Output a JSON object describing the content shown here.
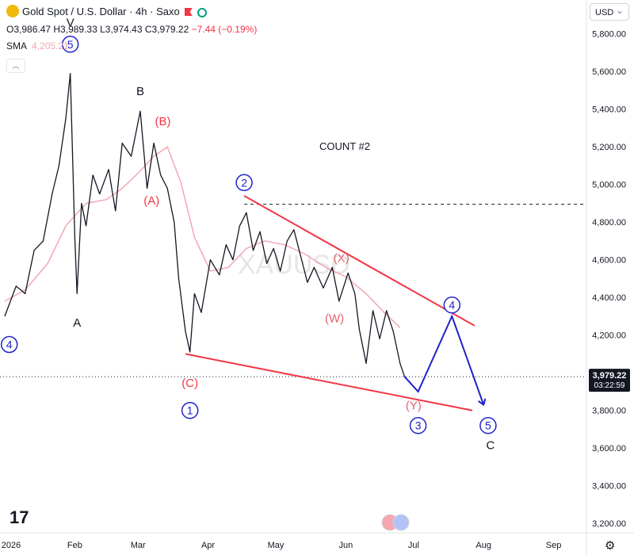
{
  "header": {
    "title": "Gold Spot / U.S. Dollar · 4h · Saxo",
    "open": "O3,986.47",
    "high": "H3,989.33",
    "low": "L3,974.43",
    "close": "C3,979.22",
    "change": "−7.44 (−0.19%)",
    "sma_label": "SMA",
    "sma_value": "4,205.21",
    "currency": "USD"
  },
  "price_box": {
    "price": "3,979.22",
    "countdown": "03:22:59"
  },
  "watermark": "XAUUSD",
  "count_label": "COUNT #2",
  "branding": "17",
  "colors": {
    "wave_blue": "#1e22c8",
    "line_red": "#f23645",
    "wave_red": "#e8606f",
    "price_black": "#131722",
    "sma_pink": "#f4a7b3"
  },
  "chart_data": {
    "type": "line",
    "interval": "4h",
    "y_axis": {
      "range": [
        3150,
        5980
      ],
      "ticks": [
        3200,
        3400,
        3600,
        3800,
        4000,
        4200,
        4400,
        4600,
        4800,
        5000,
        5200,
        5400,
        5600,
        5800
      ],
      "tick_labels": [
        "3,200.00",
        "3,400.00",
        "3,600.00",
        "3,800.00",
        "4,000.00",
        "4,200.00",
        "4,400.00",
        "4,600.00",
        "4,800.00",
        "5,000.00",
        "5,200.00",
        "5,400.00",
        "5,600.00",
        "5,800.00"
      ]
    },
    "x_axis": {
      "range": [
        "2026-01-01",
        "2026-09-28"
      ],
      "ticks": [
        "2026-01-01",
        "2026-02-01",
        "2026-03-01",
        "2026-04-01",
        "2026-05-01",
        "2026-06-01",
        "2026-07-01",
        "2026-08-01",
        "2026-09-01"
      ],
      "tick_labels": [
        "2026",
        "Feb",
        "Mar",
        "Apr",
        "May",
        "Jun",
        "Jul",
        "Aug",
        "Sep"
      ]
    },
    "price_series": [
      [
        "2026-01-01",
        4300
      ],
      [
        "2026-01-06",
        4460
      ],
      [
        "2026-01-10",
        4420
      ],
      [
        "2026-01-14",
        4650
      ],
      [
        "2026-01-18",
        4700
      ],
      [
        "2026-01-22",
        4950
      ],
      [
        "2026-01-25",
        5100
      ],
      [
        "2026-01-28",
        5350
      ],
      [
        "2026-01-30",
        5590
      ],
      [
        "2026-02-01",
        4720
      ],
      [
        "2026-02-02",
        4420
      ],
      [
        "2026-02-04",
        4900
      ],
      [
        "2026-02-06",
        4780
      ],
      [
        "2026-02-09",
        5050
      ],
      [
        "2026-02-12",
        4950
      ],
      [
        "2026-02-16",
        5080
      ],
      [
        "2026-02-19",
        4860
      ],
      [
        "2026-02-22",
        5220
      ],
      [
        "2026-02-26",
        5150
      ],
      [
        "2026-03-02",
        5390
      ],
      [
        "2026-03-05",
        4980
      ],
      [
        "2026-03-08",
        5220
      ],
      [
        "2026-03-11",
        5050
      ],
      [
        "2026-03-14",
        4980
      ],
      [
        "2026-03-17",
        4800
      ],
      [
        "2026-03-19",
        4500
      ],
      [
        "2026-03-22",
        4220
      ],
      [
        "2026-03-24",
        4110
      ],
      [
        "2026-03-26",
        4420
      ],
      [
        "2026-03-29",
        4320
      ],
      [
        "2026-04-02",
        4600
      ],
      [
        "2026-04-06",
        4520
      ],
      [
        "2026-04-09",
        4680
      ],
      [
        "2026-04-12",
        4600
      ],
      [
        "2026-04-15",
        4780
      ],
      [
        "2026-04-18",
        4850
      ],
      [
        "2026-04-21",
        4650
      ],
      [
        "2026-04-24",
        4750
      ],
      [
        "2026-04-27",
        4580
      ],
      [
        "2026-04-30",
        4660
      ],
      [
        "2026-05-03",
        4540
      ],
      [
        "2026-05-06",
        4700
      ],
      [
        "2026-05-09",
        4760
      ],
      [
        "2026-05-12",
        4620
      ],
      [
        "2026-05-15",
        4480
      ],
      [
        "2026-05-18",
        4560
      ],
      [
        "2026-05-22",
        4450
      ],
      [
        "2026-05-26",
        4560
      ],
      [
        "2026-05-29",
        4380
      ],
      [
        "2026-06-02",
        4530
      ],
      [
        "2026-06-05",
        4420
      ],
      [
        "2026-06-07",
        4230
      ],
      [
        "2026-06-10",
        4050
      ],
      [
        "2026-06-13",
        4330
      ],
      [
        "2026-06-16",
        4180
      ],
      [
        "2026-06-19",
        4330
      ],
      [
        "2026-06-22",
        4220
      ],
      [
        "2026-06-25",
        4050
      ],
      [
        "2026-06-27",
        3980
      ]
    ],
    "sma_series": [
      [
        "2026-01-01",
        4380
      ],
      [
        "2026-01-10",
        4440
      ],
      [
        "2026-01-20",
        4580
      ],
      [
        "2026-01-28",
        4780
      ],
      [
        "2026-02-06",
        4900
      ],
      [
        "2026-02-15",
        4920
      ],
      [
        "2026-02-22",
        4980
      ],
      [
        "2026-03-01",
        5060
      ],
      [
        "2026-03-08",
        5150
      ],
      [
        "2026-03-14",
        5200
      ],
      [
        "2026-03-20",
        5010
      ],
      [
        "2026-03-26",
        4720
      ],
      [
        "2026-04-02",
        4540
      ],
      [
        "2026-04-10",
        4560
      ],
      [
        "2026-04-18",
        4660
      ],
      [
        "2026-04-26",
        4700
      ],
      [
        "2026-05-05",
        4680
      ],
      [
        "2026-05-14",
        4630
      ],
      [
        "2026-05-23",
        4560
      ],
      [
        "2026-06-01",
        4510
      ],
      [
        "2026-06-10",
        4420
      ],
      [
        "2026-06-18",
        4320
      ],
      [
        "2026-06-25",
        4240
      ]
    ],
    "projection": [
      [
        "2026-06-27",
        3980
      ],
      [
        "2026-07-03",
        3900
      ],
      [
        "2026-07-18",
        4300
      ],
      [
        "2026-08-01",
        3830
      ]
    ],
    "upper_trendline": [
      [
        "2026-04-17",
        4940
      ],
      [
        "2026-07-28",
        4250
      ]
    ],
    "lower_trendline": [
      [
        "2026-03-22",
        4100
      ],
      [
        "2026-07-27",
        3800
      ]
    ],
    "dashed_level": [
      [
        "2026-04-17",
        4895
      ],
      [
        "2026-09-28",
        4895
      ]
    ],
    "current_price_level": 3979.22,
    "labels": [
      {
        "text": "V",
        "x": "2026-01-30",
        "y": 5860,
        "style": "black"
      },
      {
        "text": "5",
        "x": "2026-01-30",
        "y": 5745,
        "style": "blue-circle"
      },
      {
        "text": "A",
        "x": "2026-02-02",
        "y": 4265,
        "style": "black"
      },
      {
        "text": "4",
        "x": "2026-01-03",
        "y": 4150,
        "style": "blue-circle"
      },
      {
        "text": "B",
        "x": "2026-03-02",
        "y": 5495,
        "style": "black"
      },
      {
        "text": "(B)",
        "x": "2026-03-12",
        "y": 5335,
        "style": "red"
      },
      {
        "text": "(A)",
        "x": "2026-03-07",
        "y": 4915,
        "style": "red"
      },
      {
        "text": "(C)",
        "x": "2026-03-24",
        "y": 3945,
        "style": "red"
      },
      {
        "text": "1",
        "x": "2026-03-24",
        "y": 3800,
        "style": "blue-circle"
      },
      {
        "text": "2",
        "x": "2026-04-17",
        "y": 5010,
        "style": "blue-circle"
      },
      {
        "text": "(X)",
        "x": "2026-05-30",
        "y": 4610,
        "style": "red-light"
      },
      {
        "text": "(W)",
        "x": "2026-05-27",
        "y": 4290,
        "style": "red-light"
      },
      {
        "text": "4",
        "x": "2026-07-18",
        "y": 4360,
        "style": "blue-circle"
      },
      {
        "text": "(Y)",
        "x": "2026-07-01",
        "y": 3825,
        "style": "red-light"
      },
      {
        "text": "3",
        "x": "2026-07-03",
        "y": 3720,
        "style": "blue-circle"
      },
      {
        "text": "5",
        "x": "2026-08-03",
        "y": 3720,
        "style": "blue-circle"
      },
      {
        "text": "C",
        "x": "2026-08-04",
        "y": 3615,
        "style": "black"
      }
    ]
  }
}
